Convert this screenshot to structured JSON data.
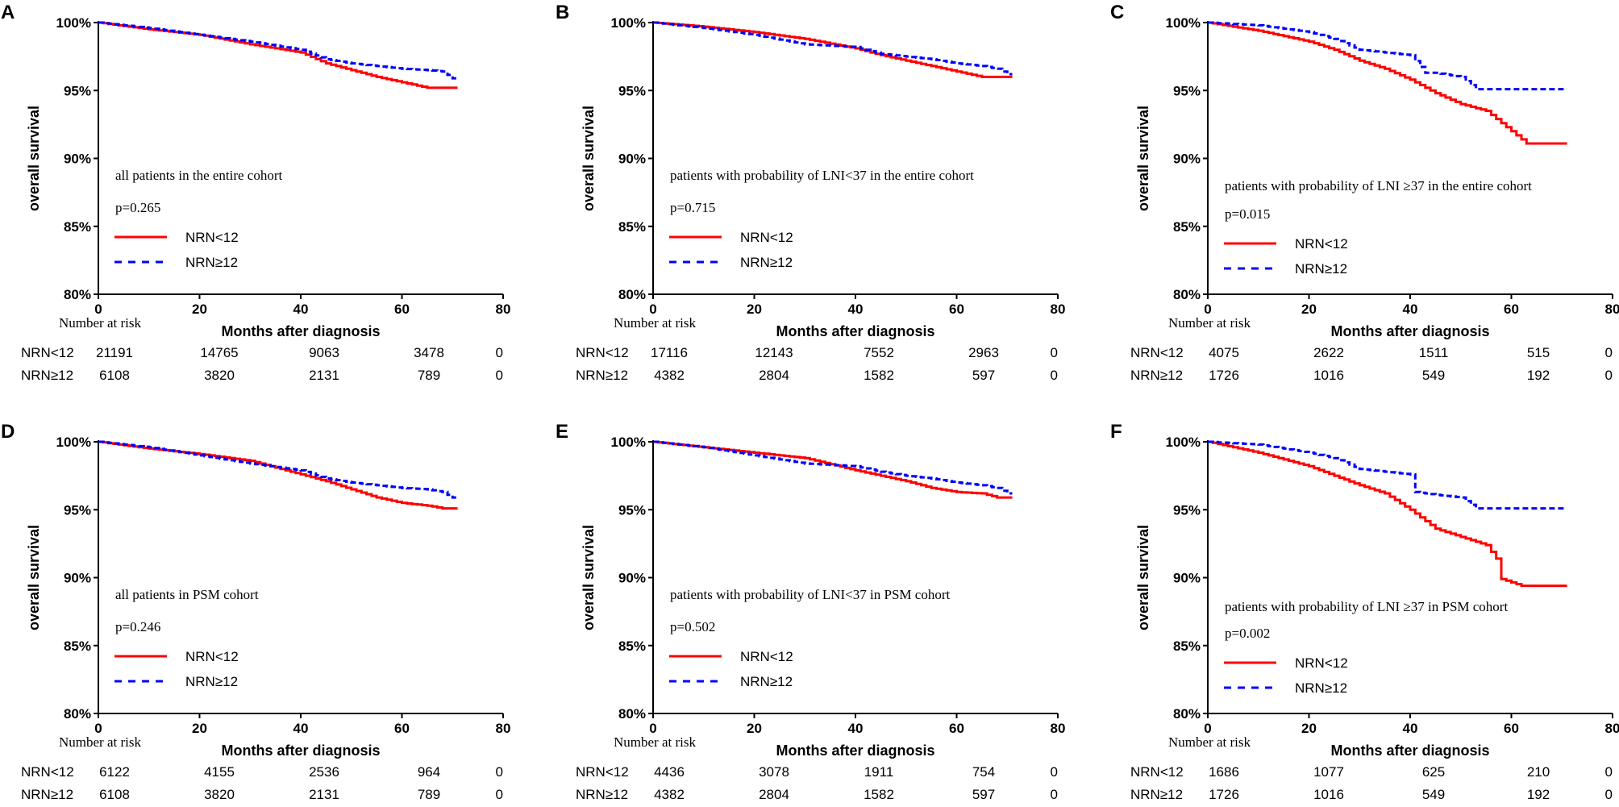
{
  "chart_data": [
    {
      "type": "line",
      "panel_label": "A",
      "ylabel": "overall survival",
      "xlabel": "Months after diagnosis",
      "ylim": [
        80,
        100
      ],
      "xlim": [
        0,
        80
      ],
      "yticks": [
        "80%",
        "85%",
        "90%",
        "95%",
        "100%"
      ],
      "xticks": [
        "0",
        "20",
        "40",
        "60",
        "80"
      ],
      "annotation": "all patients in the entire cohort",
      "pvalue": "p=0.265",
      "series": [
        {
          "name": "NRN<12",
          "color": "#ff0000",
          "style": "solid",
          "x": [
            0,
            10,
            20,
            30,
            40,
            45,
            50,
            55,
            60,
            65,
            71
          ],
          "y": [
            100,
            99.5,
            99.1,
            98.4,
            97.8,
            97.0,
            96.5,
            96.0,
            95.6,
            95.2,
            95.2
          ]
        },
        {
          "name": "NRN≥12",
          "color": "#0000ff",
          "style": "dashed",
          "x": [
            0,
            10,
            20,
            30,
            40,
            45,
            50,
            55,
            60,
            65,
            68,
            70,
            71
          ],
          "y": [
            100,
            99.6,
            99.1,
            98.6,
            98.0,
            97.3,
            97.0,
            96.8,
            96.6,
            96.5,
            96.4,
            95.9,
            95.9
          ]
        }
      ],
      "risk_title": "Number at risk",
      "risk": [
        {
          "label": "NRN<12",
          "values": [
            "21191",
            "14765",
            "9063",
            "3478",
            "0"
          ]
        },
        {
          "label": "NRN≥12",
          "values": [
            "6108",
            "3820",
            "2131",
            "789",
            "0"
          ]
        }
      ]
    },
    {
      "type": "line",
      "panel_label": "B",
      "ylabel": "overall survival",
      "xlabel": "Months after diagnosis",
      "ylim": [
        80,
        100
      ],
      "xlim": [
        0,
        80
      ],
      "yticks": [
        "80%",
        "85%",
        "90%",
        "95%",
        "100%"
      ],
      "xticks": [
        "0",
        "20",
        "40",
        "60",
        "80"
      ],
      "annotation": "patients with probability of LNI<37 in the entire cohort",
      "pvalue": "p=0.715",
      "series": [
        {
          "name": "NRN<12",
          "color": "#ff0000",
          "style": "solid",
          "x": [
            0,
            10,
            20,
            30,
            40,
            45,
            50,
            55,
            60,
            65,
            71
          ],
          "y": [
            100,
            99.7,
            99.3,
            98.8,
            98.1,
            97.6,
            97.2,
            96.8,
            96.4,
            96.0,
            96.0
          ]
        },
        {
          "name": "NRN≥12",
          "color": "#0000ff",
          "style": "dashed",
          "x": [
            0,
            10,
            20,
            30,
            40,
            45,
            50,
            55,
            60,
            65,
            68,
            70,
            71
          ],
          "y": [
            100,
            99.6,
            99.1,
            98.4,
            98.2,
            97.7,
            97.5,
            97.3,
            97.0,
            96.8,
            96.6,
            96.2,
            96.2
          ]
        }
      ],
      "risk_title": "Number at risk",
      "risk": [
        {
          "label": "NRN<12",
          "values": [
            "17116",
            "12143",
            "7552",
            "2963",
            "0"
          ]
        },
        {
          "label": "NRN≥12",
          "values": [
            "4382",
            "2804",
            "1582",
            "597",
            "0"
          ]
        }
      ]
    },
    {
      "type": "line",
      "panel_label": "C",
      "ylabel": "overall survival",
      "xlabel": "Months after diagnosis",
      "ylim": [
        80,
        100
      ],
      "xlim": [
        0,
        80
      ],
      "yticks": [
        "80%",
        "85%",
        "90%",
        "95%",
        "100%"
      ],
      "xticks": [
        "0",
        "20",
        "40",
        "60",
        "80"
      ],
      "annotation": "patients with probability of LNI ≥37 in the entire cohort",
      "pvalue": "p=0.015",
      "series": [
        {
          "name": "NRN<12",
          "color": "#ff0000",
          "style": "solid",
          "x": [
            0,
            10,
            20,
            25,
            30,
            35,
            40,
            45,
            50,
            55,
            60,
            63,
            71
          ],
          "y": [
            100,
            99.4,
            98.6,
            98.0,
            97.2,
            96.6,
            95.8,
            94.8,
            94.0,
            93.5,
            92.0,
            91.1,
            91.1
          ]
        },
        {
          "name": "NRN≥12",
          "color": "#0000ff",
          "style": "dashed",
          "x": [
            0,
            10,
            20,
            25,
            30,
            35,
            40,
            43,
            45,
            50,
            53,
            60,
            71
          ],
          "y": [
            100,
            99.8,
            99.3,
            98.8,
            98.0,
            97.8,
            97.6,
            96.3,
            96.3,
            96.0,
            95.1,
            95.1,
            95.1
          ]
        }
      ],
      "risk_title": "Number at risk",
      "risk": [
        {
          "label": "NRN<12",
          "values": [
            "4075",
            "2622",
            "1511",
            "515",
            "0"
          ]
        },
        {
          "label": "NRN≥12",
          "values": [
            "1726",
            "1016",
            "549",
            "192",
            "0"
          ]
        }
      ]
    },
    {
      "type": "line",
      "panel_label": "D",
      "ylabel": "overall survival",
      "xlabel": "Months after diagnosis",
      "ylim": [
        80,
        100
      ],
      "xlim": [
        0,
        80
      ],
      "yticks": [
        "80%",
        "85%",
        "90%",
        "95%",
        "100%"
      ],
      "xticks": [
        "0",
        "20",
        "40",
        "60",
        "80"
      ],
      "annotation": "all patients in PSM cohort",
      "pvalue": "p=0.246",
      "series": [
        {
          "name": "NRN<12",
          "color": "#ff0000",
          "style": "solid",
          "x": [
            0,
            10,
            20,
            30,
            40,
            45,
            50,
            55,
            60,
            65,
            68,
            71
          ],
          "y": [
            100,
            99.5,
            99.1,
            98.6,
            97.6,
            97.1,
            96.5,
            95.9,
            95.5,
            95.3,
            95.1,
            95.1
          ]
        },
        {
          "name": "NRN≥12",
          "color": "#0000ff",
          "style": "dashed",
          "x": [
            0,
            10,
            20,
            30,
            40,
            45,
            50,
            55,
            60,
            65,
            68,
            70,
            71
          ],
          "y": [
            100,
            99.6,
            99.0,
            98.4,
            97.9,
            97.3,
            97.0,
            96.8,
            96.6,
            96.5,
            96.3,
            95.9,
            95.9
          ]
        }
      ],
      "risk_title": "Number at risk",
      "risk": [
        {
          "label": "NRN<12",
          "values": [
            "6122",
            "4155",
            "2536",
            "964",
            "0"
          ]
        },
        {
          "label": "NRN≥12",
          "values": [
            "6108",
            "3820",
            "2131",
            "789",
            "0"
          ]
        }
      ]
    },
    {
      "type": "line",
      "panel_label": "E",
      "ylabel": "overall survival",
      "xlabel": "Months after diagnosis",
      "ylim": [
        80,
        100
      ],
      "xlim": [
        0,
        80
      ],
      "yticks": [
        "80%",
        "85%",
        "90%",
        "95%",
        "100%"
      ],
      "xticks": [
        "0",
        "20",
        "40",
        "60",
        "80"
      ],
      "annotation": "patients with probability of LNI<37 in PSM cohort",
      "pvalue": "p=0.502",
      "series": [
        {
          "name": "NRN<12",
          "color": "#ff0000",
          "style": "solid",
          "x": [
            0,
            10,
            20,
            30,
            40,
            45,
            50,
            55,
            60,
            65,
            68,
            71
          ],
          "y": [
            100,
            99.6,
            99.2,
            98.8,
            97.9,
            97.5,
            97.1,
            96.6,
            96.3,
            96.2,
            95.9,
            95.9
          ]
        },
        {
          "name": "NRN≥12",
          "color": "#0000ff",
          "style": "dashed",
          "x": [
            0,
            10,
            20,
            30,
            40,
            45,
            50,
            55,
            60,
            65,
            68,
            70,
            71
          ],
          "y": [
            100,
            99.6,
            99.0,
            98.4,
            98.2,
            97.8,
            97.5,
            97.3,
            97.0,
            96.8,
            96.6,
            96.2,
            96.2
          ]
        }
      ],
      "risk_title": "Number at risk",
      "risk": [
        {
          "label": "NRN<12",
          "values": [
            "4436",
            "3078",
            "1911",
            "754",
            "0"
          ]
        },
        {
          "label": "NRN≥12",
          "values": [
            "4382",
            "2804",
            "1582",
            "597",
            "0"
          ]
        }
      ]
    },
    {
      "type": "line",
      "panel_label": "F",
      "ylabel": "overall survival",
      "xlabel": "Months after diagnosis",
      "ylim": [
        80,
        100
      ],
      "xlim": [
        0,
        80
      ],
      "yticks": [
        "80%",
        "85%",
        "90%",
        "95%",
        "100%"
      ],
      "xticks": [
        "0",
        "20",
        "40",
        "60",
        "80"
      ],
      "annotation": "patients with probability of LNI ≥37 in PSM cohort",
      "pvalue": "p=0.002",
      "series": [
        {
          "name": "NRN<12",
          "color": "#ff0000",
          "style": "solid",
          "x": [
            0,
            10,
            20,
            25,
            30,
            35,
            40,
            45,
            50,
            55,
            57,
            58,
            62,
            71
          ],
          "y": [
            100,
            99.2,
            98.2,
            97.5,
            96.8,
            96.2,
            95.0,
            93.6,
            93.0,
            92.4,
            91.4,
            89.9,
            89.4,
            89.4
          ]
        },
        {
          "name": "NRN≥12",
          "color": "#0000ff",
          "style": "dashed",
          "x": [
            0,
            10,
            20,
            25,
            30,
            35,
            40,
            41,
            45,
            50,
            53,
            60,
            71
          ],
          "y": [
            100,
            99.8,
            99.2,
            98.8,
            98.0,
            97.8,
            97.6,
            96.3,
            96.1,
            95.9,
            95.1,
            95.1,
            95.1
          ]
        }
      ],
      "risk_title": "Number at risk",
      "risk": [
        {
          "label": "NRN<12",
          "values": [
            "1686",
            "1077",
            "625",
            "210",
            "0"
          ]
        },
        {
          "label": "NRN≥12",
          "values": [
            "1726",
            "1016",
            "549",
            "192",
            "0"
          ]
        }
      ]
    }
  ]
}
